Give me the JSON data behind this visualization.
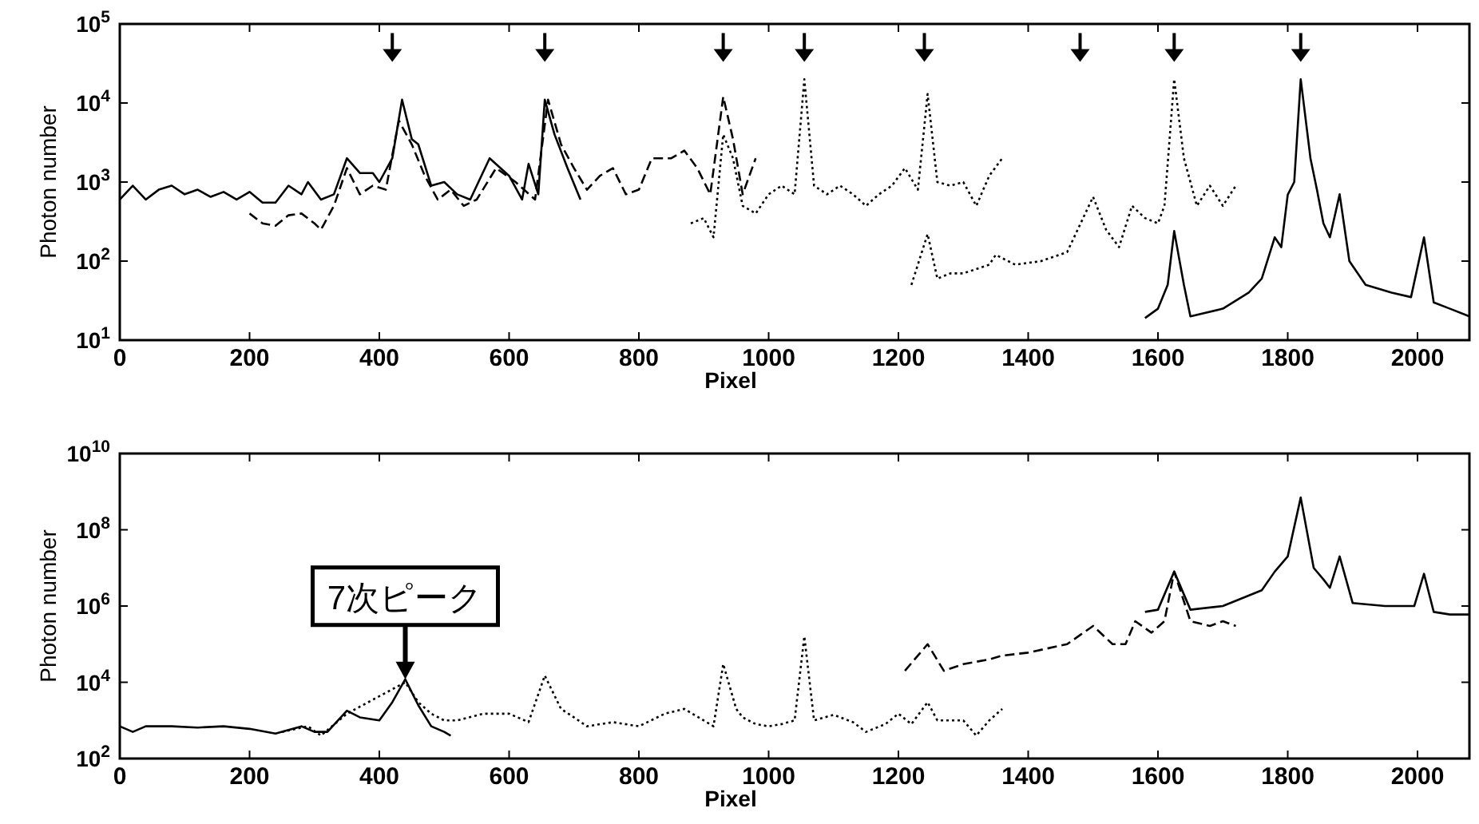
{
  "chart_data": [
    {
      "type": "line",
      "xlabel": "Pixel",
      "ylabel": "Photon number",
      "log": "y",
      "xlim": [
        0,
        2080
      ],
      "ylim": [
        10,
        100000
      ],
      "xticks": [
        0,
        200,
        400,
        600,
        800,
        1000,
        1200,
        1400,
        1600,
        1800,
        2000
      ],
      "yticks": [
        {
          "value": 10,
          "label": "10$^{1}$"
        },
        {
          "value": 100,
          "label": "10$^{2}$"
        },
        {
          "value": 1000,
          "label": "10$^{3}$"
        },
        {
          "value": 10000,
          "label": "10$^{4}$"
        },
        {
          "value": 100000,
          "label": "10$^{5}$"
        }
      ],
      "series": [
        {
          "color": "#000000",
          "line_style": "solid",
          "x": [
            0,
            20,
            40,
            60,
            80,
            100,
            120,
            140,
            160,
            180,
            200,
            220,
            240,
            260,
            280,
            290,
            310,
            330,
            350,
            370,
            390,
            400,
            420,
            435,
            450,
            460,
            480,
            500,
            520,
            540,
            570,
            600,
            620,
            630,
            645,
            655,
            670,
            690,
            710
          ],
          "values": [
            600,
            900,
            600,
            800,
            900,
            700,
            800,
            650,
            750,
            600,
            750,
            550,
            550,
            900,
            700,
            1000,
            600,
            700,
            2000,
            1300,
            1300,
            1000,
            2000,
            11000,
            3500,
            3000,
            900,
            1000,
            700,
            600,
            2000,
            1200,
            600,
            1700,
            700,
            11000,
            4000,
            1500,
            600
          ]
        },
        {
          "color": "#000000",
          "line_style": "dashed",
          "x": [
            200,
            220,
            240,
            260,
            280,
            300,
            310,
            330,
            350,
            370,
            390,
            410,
            430,
            450,
            470,
            490,
            510,
            530,
            550,
            580,
            610,
            640,
            660,
            680,
            700,
            720,
            740,
            760,
            780,
            800,
            820,
            850,
            870,
            890,
            910,
            930,
            945,
            960,
            980
          ],
          "values": [
            400,
            300,
            280,
            380,
            400,
            300,
            250,
            500,
            1500,
            700,
            900,
            800,
            6000,
            3000,
            1200,
            600,
            800,
            500,
            600,
            1500,
            1000,
            600,
            11000,
            3000,
            1500,
            800,
            1200,
            1500,
            700,
            800,
            2000,
            2000,
            2500,
            1500,
            700,
            12000,
            3500,
            700,
            2000
          ]
        },
        {
          "color": "#000000",
          "line_style": "dotted",
          "x": [
            880,
            900,
            915,
            930,
            945,
            960,
            980,
            1000,
            1020,
            1040,
            1055,
            1070,
            1090,
            1110,
            1130,
            1150,
            1170,
            1190,
            1210,
            1230,
            1245,
            1260,
            1280,
            1300,
            1320,
            1340,
            1360
          ],
          "values": [
            300,
            350,
            200,
            4000,
            2000,
            500,
            400,
            700,
            900,
            700,
            20000,
            900,
            700,
            900,
            700,
            500,
            700,
            900,
            1500,
            800,
            13000,
            1000,
            900,
            1000,
            500,
            1200,
            2000
          ]
        },
        {
          "color": "#000000",
          "line_style": "dotted",
          "x": [
            1220,
            1245,
            1260,
            1280,
            1300,
            1340,
            1350,
            1380,
            1420,
            1460,
            1500,
            1520,
            1540,
            1560,
            1580,
            1600,
            1610,
            1625,
            1640,
            1660,
            1680,
            1700,
            1720
          ],
          "values": [
            50,
            220,
            60,
            70,
            70,
            90,
            120,
            90,
            100,
            130,
            650,
            250,
            150,
            500,
            350,
            300,
            500,
            20000,
            2000,
            500,
            900,
            500,
            900
          ]
        },
        {
          "color": "#000000",
          "line_style": "solid",
          "x": [
            1580,
            1600,
            1615,
            1625,
            1640,
            1650,
            1700,
            1740,
            1760,
            1780,
            1790,
            1800,
            1810,
            1820,
            1835,
            1845,
            1855,
            1865,
            1880,
            1895,
            1920,
            1960,
            1990,
            2010,
            2025,
            2050,
            2080
          ],
          "values": [
            19,
            25,
            50,
            240,
            50,
            20,
            25,
            40,
            60,
            200,
            150,
            690,
            1000,
            20000,
            2000,
            800,
            300,
            200,
            700,
            100,
            50,
            40,
            35,
            200,
            30,
            25,
            20
          ]
        },
        {
          "type": "scatter",
          "color": "#000000",
          "marker": "triangle",
          "x": [
            420,
            655,
            930,
            1055,
            1240,
            1480,
            1625,
            1820
          ],
          "values": [
            40000,
            40000,
            40000,
            40000,
            40000,
            40000,
            40000,
            40000
          ]
        }
      ]
    },
    {
      "type": "line",
      "xlabel": "Pixel",
      "ylabel": "Photon number",
      "log": "y",
      "xlim": [
        0,
        2080
      ],
      "ylim": [
        100,
        10000000000
      ],
      "xticks": [
        0,
        200,
        400,
        600,
        800,
        1000,
        1200,
        1400,
        1600,
        1800,
        2000
      ],
      "yticks": [
        {
          "value": 100,
          "label": "10$^{2}$"
        },
        {
          "value": 10000,
          "label": "10$^{4}$"
        },
        {
          "value": 1000000,
          "label": "10$^{6}$"
        },
        {
          "value": 100000000,
          "label": "10$^{8}$"
        },
        {
          "value": 10000000000,
          "label": "10$^{10}$"
        }
      ],
      "annotations": [
        {
          "text": "7次ピーク",
          "x": 440,
          "y": 12000
        }
      ],
      "series": [
        {
          "color": "#000000",
          "line_style": "solid",
          "x": [
            0,
            20,
            40,
            80,
            120,
            160,
            200,
            240,
            280,
            300,
            320,
            350,
            370,
            400,
            420,
            440,
            460,
            480,
            500,
            510
          ],
          "values": [
            700,
            500,
            700,
            700,
            650,
            700,
            600,
            450,
            700,
            500,
            500,
            1800,
            1200,
            1000,
            3000,
            12000,
            2500,
            700,
            500,
            400
          ]
        },
        {
          "color": "#000000",
          "line_style": "dotted",
          "x": [
            250,
            290,
            310,
            350,
            440,
            460,
            480,
            500,
            520,
            560,
            600,
            630,
            655,
            680,
            700,
            720,
            760,
            800,
            840,
            870,
            900,
            915,
            930,
            950,
            960,
            980,
            1000,
            1020,
            1040,
            1055,
            1070,
            1100,
            1130,
            1150,
            1180,
            1200,
            1220,
            1245,
            1260,
            1300,
            1320,
            1340,
            1360
          ],
          "values": [
            500,
            700,
            400,
            1500,
            10000,
            3000,
            1500,
            1000,
            1000,
            1500,
            1500,
            900,
            15000,
            2000,
            1200,
            700,
            900,
            700,
            1500,
            2000,
            1000,
            700,
            30000,
            2000,
            1200,
            800,
            700,
            800,
            1000,
            160000,
            1000,
            1400,
            900,
            500,
            800,
            1500,
            800,
            3000,
            1000,
            1000,
            400,
            1000,
            2000
          ]
        },
        {
          "color": "#000000",
          "line_style": "dashed",
          "x": [
            1210,
            1245,
            1270,
            1300,
            1340,
            1360,
            1400,
            1460,
            1500,
            1530,
            1550,
            1565,
            1590,
            1610,
            1625,
            1650,
            1680,
            1700,
            1720
          ],
          "values": [
            20000,
            100000,
            20000,
            30000,
            40000,
            50000,
            60000,
            100000,
            300000,
            100000,
            100000,
            400000,
            200000,
            400000,
            8000000,
            400000,
            300000,
            400000,
            300000
          ]
        },
        {
          "color": "#000000",
          "line_style": "solid",
          "x": [
            1580,
            1600,
            1625,
            1650,
            1700,
            1760,
            1780,
            1800,
            1820,
            1840,
            1855,
            1865,
            1880,
            1900,
            1950,
            1995,
            2010,
            2025,
            2050,
            2080
          ],
          "values": [
            700000,
            800000,
            8000000,
            800000,
            1000000,
            2600000,
            8000000,
            20000000,
            700000000,
            10000000,
            5000000,
            3000000,
            20000000,
            1200000,
            1000000,
            1000000,
            7000000,
            700000,
            600000,
            600000
          ]
        }
      ]
    }
  ]
}
